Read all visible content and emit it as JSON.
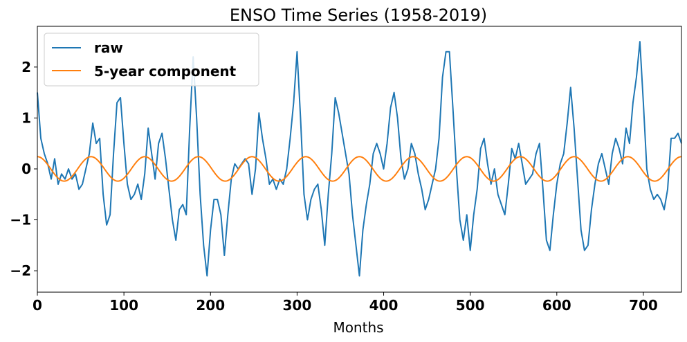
{
  "chart_data": {
    "type": "line",
    "title": "ENSO Time Series (1958-2019)",
    "xlabel": "Months",
    "ylabel": "",
    "xlim": [
      0,
      744
    ],
    "ylim": [
      -2.42,
      2.8
    ],
    "xticks": [
      0,
      100,
      200,
      300,
      400,
      500,
      600,
      700
    ],
    "yticks": [
      -2,
      -1,
      0,
      1,
      2
    ],
    "ytick_labels": [
      "−2",
      "−1",
      "0",
      "1",
      "2"
    ],
    "grid": false,
    "legend_position": "upper-left",
    "series": [
      {
        "name": "raw",
        "color": "#1f77b4",
        "points": [
          [
            0,
            1.5
          ],
          [
            4,
            0.6
          ],
          [
            8,
            0.3
          ],
          [
            12,
            0.1
          ],
          [
            16,
            -0.2
          ],
          [
            20,
            0.2
          ],
          [
            24,
            -0.3
          ],
          [
            28,
            -0.1
          ],
          [
            32,
            -0.2
          ],
          [
            36,
            0.0
          ],
          [
            40,
            -0.2
          ],
          [
            44,
            -0.1
          ],
          [
            48,
            -0.4
          ],
          [
            52,
            -0.3
          ],
          [
            56,
            0.0
          ],
          [
            60,
            0.3
          ],
          [
            64,
            0.9
          ],
          [
            68,
            0.5
          ],
          [
            72,
            0.6
          ],
          [
            76,
            -0.5
          ],
          [
            80,
            -1.1
          ],
          [
            84,
            -0.9
          ],
          [
            88,
            0.3
          ],
          [
            92,
            1.3
          ],
          [
            96,
            1.4
          ],
          [
            100,
            0.5
          ],
          [
            104,
            -0.3
          ],
          [
            108,
            -0.6
          ],
          [
            112,
            -0.5
          ],
          [
            116,
            -0.3
          ],
          [
            120,
            -0.6
          ],
          [
            124,
            -0.1
          ],
          [
            128,
            0.8
          ],
          [
            132,
            0.3
          ],
          [
            136,
            -0.2
          ],
          [
            140,
            0.5
          ],
          [
            144,
            0.7
          ],
          [
            148,
            0.2
          ],
          [
            152,
            -0.4
          ],
          [
            156,
            -1.0
          ],
          [
            160,
            -1.4
          ],
          [
            164,
            -0.8
          ],
          [
            168,
            -0.7
          ],
          [
            172,
            -0.9
          ],
          [
            176,
            0.8
          ],
          [
            180,
            2.2
          ],
          [
            184,
            1.0
          ],
          [
            188,
            -0.5
          ],
          [
            192,
            -1.5
          ],
          [
            196,
            -2.1
          ],
          [
            200,
            -1.2
          ],
          [
            204,
            -0.6
          ],
          [
            208,
            -0.6
          ],
          [
            212,
            -0.9
          ],
          [
            216,
            -1.7
          ],
          [
            220,
            -0.9
          ],
          [
            224,
            -0.2
          ],
          [
            228,
            0.1
          ],
          [
            232,
            0.0
          ],
          [
            236,
            0.1
          ],
          [
            240,
            0.2
          ],
          [
            244,
            0.1
          ],
          [
            248,
            -0.5
          ],
          [
            252,
            0.0
          ],
          [
            256,
            1.1
          ],
          [
            260,
            0.6
          ],
          [
            264,
            0.2
          ],
          [
            268,
            -0.3
          ],
          [
            272,
            -0.2
          ],
          [
            276,
            -0.4
          ],
          [
            280,
            -0.2
          ],
          [
            284,
            -0.3
          ],
          [
            288,
            0.0
          ],
          [
            292,
            0.6
          ],
          [
            296,
            1.3
          ],
          [
            300,
            2.3
          ],
          [
            304,
            1.0
          ],
          [
            308,
            -0.5
          ],
          [
            312,
            -1.0
          ],
          [
            316,
            -0.6
          ],
          [
            320,
            -0.4
          ],
          [
            324,
            -0.3
          ],
          [
            328,
            -0.8
          ],
          [
            332,
            -1.5
          ],
          [
            336,
            -0.5
          ],
          [
            340,
            0.3
          ],
          [
            344,
            1.4
          ],
          [
            348,
            1.1
          ],
          [
            352,
            0.7
          ],
          [
            356,
            0.3
          ],
          [
            360,
            -0.1
          ],
          [
            364,
            -0.9
          ],
          [
            368,
            -1.5
          ],
          [
            372,
            -2.1
          ],
          [
            376,
            -1.2
          ],
          [
            380,
            -0.7
          ],
          [
            384,
            -0.3
          ],
          [
            388,
            0.3
          ],
          [
            392,
            0.5
          ],
          [
            396,
            0.3
          ],
          [
            400,
            0.0
          ],
          [
            404,
            0.5
          ],
          [
            408,
            1.2
          ],
          [
            412,
            1.5
          ],
          [
            416,
            1.0
          ],
          [
            420,
            0.2
          ],
          [
            424,
            -0.2
          ],
          [
            428,
            0.0
          ],
          [
            432,
            0.5
          ],
          [
            436,
            0.3
          ],
          [
            440,
            -0.1
          ],
          [
            444,
            -0.4
          ],
          [
            448,
            -0.8
          ],
          [
            452,
            -0.6
          ],
          [
            456,
            -0.3
          ],
          [
            460,
            0.0
          ],
          [
            464,
            0.6
          ],
          [
            468,
            1.8
          ],
          [
            472,
            2.3
          ],
          [
            476,
            2.3
          ],
          [
            480,
            1.2
          ],
          [
            484,
            0.0
          ],
          [
            488,
            -1.0
          ],
          [
            492,
            -1.4
          ],
          [
            496,
            -0.9
          ],
          [
            500,
            -1.6
          ],
          [
            504,
            -0.9
          ],
          [
            508,
            -0.4
          ],
          [
            512,
            0.4
          ],
          [
            516,
            0.6
          ],
          [
            520,
            0.1
          ],
          [
            524,
            -0.3
          ],
          [
            528,
            0.0
          ],
          [
            532,
            -0.5
          ],
          [
            536,
            -0.7
          ],
          [
            540,
            -0.9
          ],
          [
            544,
            -0.3
          ],
          [
            548,
            0.4
          ],
          [
            552,
            0.2
          ],
          [
            556,
            0.5
          ],
          [
            560,
            0.1
          ],
          [
            564,
            -0.3
          ],
          [
            568,
            -0.2
          ],
          [
            572,
            -0.1
          ],
          [
            576,
            0.3
          ],
          [
            580,
            0.5
          ],
          [
            584,
            -0.4
          ],
          [
            588,
            -1.4
          ],
          [
            592,
            -1.6
          ],
          [
            596,
            -0.9
          ],
          [
            600,
            -0.3
          ],
          [
            604,
            0.1
          ],
          [
            608,
            0.3
          ],
          [
            612,
            0.9
          ],
          [
            616,
            1.6
          ],
          [
            620,
            0.8
          ],
          [
            624,
            -0.2
          ],
          [
            628,
            -1.2
          ],
          [
            632,
            -1.6
          ],
          [
            636,
            -1.5
          ],
          [
            640,
            -0.8
          ],
          [
            644,
            -0.3
          ],
          [
            648,
            0.1
          ],
          [
            652,
            0.3
          ],
          [
            656,
            0.0
          ],
          [
            660,
            -0.3
          ],
          [
            664,
            0.3
          ],
          [
            668,
            0.6
          ],
          [
            672,
            0.4
          ],
          [
            676,
            0.1
          ],
          [
            680,
            0.8
          ],
          [
            684,
            0.5
          ],
          [
            688,
            1.3
          ],
          [
            692,
            1.8
          ],
          [
            696,
            2.5
          ],
          [
            700,
            1.3
          ],
          [
            704,
            0.0
          ],
          [
            708,
            -0.4
          ],
          [
            712,
            -0.6
          ],
          [
            716,
            -0.5
          ],
          [
            720,
            -0.6
          ],
          [
            724,
            -0.8
          ],
          [
            728,
            -0.4
          ],
          [
            732,
            0.6
          ],
          [
            736,
            0.6
          ],
          [
            740,
            0.7
          ],
          [
            744,
            0.5
          ]
        ]
      },
      {
        "name": "5-year component",
        "color": "#ff7f0e",
        "amplitude": 0.24,
        "period_months": 62,
        "phase_months": 15.5
      }
    ]
  }
}
